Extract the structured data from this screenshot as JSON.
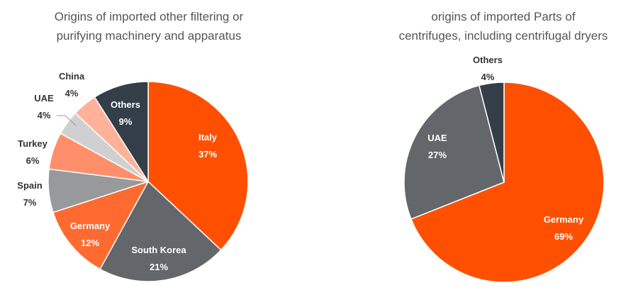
{
  "chart_data": [
    {
      "type": "pie",
      "title_line1": "Origins of imported other filtering or",
      "title_line2": "purifying machinery and apparatus",
      "slices": [
        {
          "label": "Italy",
          "value": 37,
          "pct_label": "37%",
          "color": "#fe5000"
        },
        {
          "label": "South Korea",
          "value": 21,
          "pct_label": "21%",
          "color": "#63666a"
        },
        {
          "label": "Germany",
          "value": 12,
          "pct_label": "12%",
          "color": "#ff6a31"
        },
        {
          "label": "Spain",
          "value": 7,
          "pct_label": "7%",
          "color": "#97999b"
        },
        {
          "label": "Turkey",
          "value": 6,
          "pct_label": "6%",
          "color": "#ff8f6b"
        },
        {
          "label": "UAE",
          "value": 4,
          "pct_label": "4%",
          "color": "#d0d0d0"
        },
        {
          "label": "China",
          "value": 4,
          "pct_label": "4%",
          "color": "#ffb199"
        },
        {
          "label": "Others",
          "value": 9,
          "pct_label": "9%",
          "color": "#333e48"
        }
      ]
    },
    {
      "type": "pie",
      "title_line1": "origins of imported Parts of",
      "title_line2": "centrifuges, including centrifugal dryers",
      "slices": [
        {
          "label": "Germany",
          "value": 69,
          "pct_label": "69%",
          "color": "#fe5000"
        },
        {
          "label": "UAE",
          "value": 27,
          "pct_label": "27%",
          "color": "#63666a"
        },
        {
          "label": "Others",
          "value": 4,
          "pct_label": "4%",
          "color": "#333e48"
        }
      ]
    }
  ]
}
